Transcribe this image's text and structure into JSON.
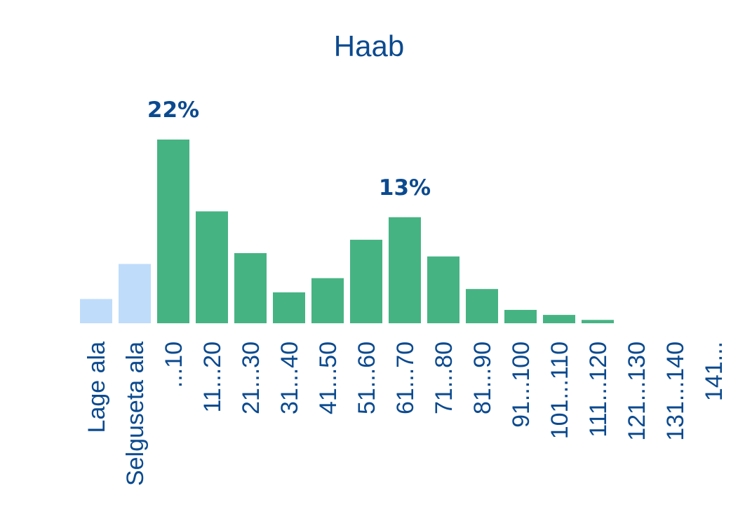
{
  "chart_data": {
    "type": "bar",
    "title": "Haab",
    "xlabel": "",
    "ylabel": "",
    "ylim": [
      0,
      22
    ],
    "grid": false,
    "categories": [
      "Lage ala",
      "Selguseta ala",
      "...10",
      "11...20",
      "21...30",
      "31...40",
      "41...50",
      "51...60",
      "61...70",
      "71...80",
      "81...90",
      "91...100",
      "101...110",
      "111...120",
      "121...130",
      "131...140",
      "141..."
    ],
    "values": [
      2.9,
      7.1,
      22,
      13.4,
      8.4,
      3.7,
      5.4,
      10,
      12.7,
      8,
      4.1,
      1.6,
      1,
      0.4,
      0,
      0,
      0
    ],
    "bar_colors": [
      "#bfdcfb",
      "#bfdcfb",
      "#46b383",
      "#46b383",
      "#46b383",
      "#46b383",
      "#46b383",
      "#46b383",
      "#46b383",
      "#46b383",
      "#46b383",
      "#46b383",
      "#46b383",
      "#46b383",
      "#46b383",
      "#46b383",
      "#46b383"
    ],
    "data_labels": [
      {
        "category": "...10",
        "text": "22%"
      },
      {
        "category": "61...70",
        "text": "13%"
      }
    ]
  },
  "colors": {
    "text": "#0b4a8f",
    "bar_main": "#46b383",
    "bar_light": "#bfdcfb"
  }
}
